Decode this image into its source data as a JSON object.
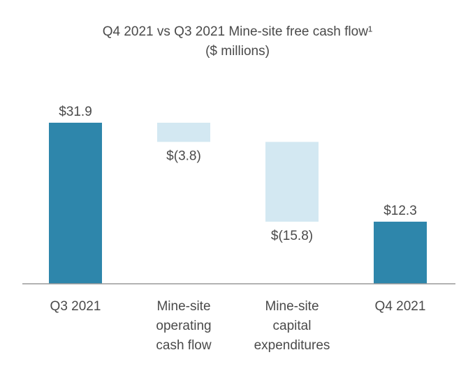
{
  "chart_data": {
    "type": "waterfall",
    "title": "Q4 2021 vs Q3 2021 Mine-site free cash flow¹",
    "subtitle": "($ millions)",
    "categories": [
      [
        "Q3 2021"
      ],
      [
        "Mine-site",
        "operating",
        "cash flow"
      ],
      [
        "Mine-site",
        "capital",
        "expenditures"
      ],
      [
        "Q4 2021"
      ]
    ],
    "values": [
      31.9,
      -3.8,
      -15.8,
      12.3
    ],
    "kinds": [
      "total",
      "delta",
      "delta",
      "total"
    ],
    "data_labels": [
      "$31.9",
      "$(3.8)",
      "$(15.8)",
      "$12.3"
    ],
    "ylim": [
      0,
      31.9
    ],
    "grid": false,
    "colors": {
      "total": "#2e86ab",
      "delta": "#d3e8f2",
      "axis": "#999999"
    }
  }
}
